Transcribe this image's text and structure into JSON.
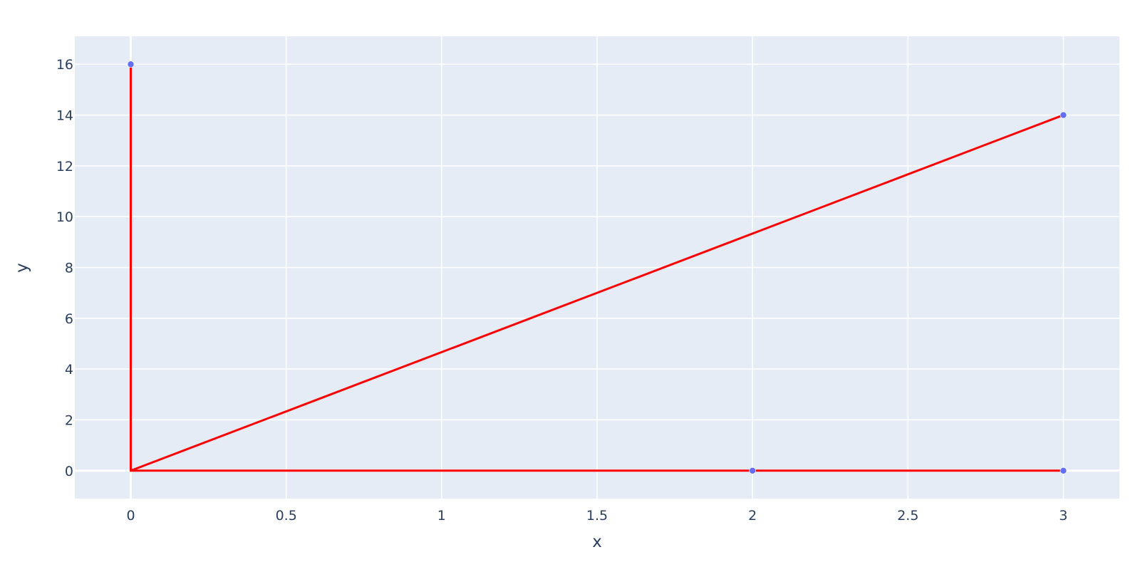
{
  "chart_data": {
    "type": "scatter",
    "title": "",
    "xlabel": "x",
    "ylabel": "y",
    "xlim": [
      -0.18,
      3.18
    ],
    "ylim": [
      -1.1,
      17.1
    ],
    "x_ticks": [
      0,
      0.5,
      1,
      1.5,
      2,
      2.5,
      3
    ],
    "x_tick_labels": [
      "0",
      "0.5",
      "1",
      "1.5",
      "2",
      "2.5",
      "3"
    ],
    "y_ticks": [
      0,
      2,
      4,
      6,
      8,
      10,
      12,
      14,
      16
    ],
    "y_tick_labels": [
      "0",
      "2",
      "4",
      "6",
      "8",
      "10",
      "12",
      "14",
      "16"
    ],
    "grid": true,
    "legend": "none",
    "series": [
      {
        "mode": "markers",
        "color": "#636efa",
        "points": [
          {
            "x": 0,
            "y": 16
          },
          {
            "x": 3,
            "y": 14
          },
          {
            "x": 2,
            "y": 0
          },
          {
            "x": 3,
            "y": 0
          }
        ]
      }
    ],
    "lines": [
      {
        "color": "#ff0000",
        "x": [
          0,
          0
        ],
        "y": [
          0,
          16
        ]
      },
      {
        "color": "#ff0000",
        "x": [
          0,
          3
        ],
        "y": [
          0,
          14
        ]
      },
      {
        "color": "#ff0000",
        "x": [
          0,
          3
        ],
        "y": [
          0,
          0
        ]
      }
    ],
    "plot_bgcolor": "#e5ecf6",
    "axis_text_color": "#2a3f5f"
  }
}
